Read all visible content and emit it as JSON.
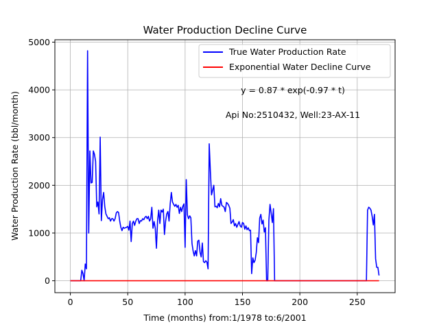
{
  "chart_data": {
    "type": "line",
    "title": "Water Production Decline Curve",
    "xlabel": "Time (months) from:1/1978 to:6/2001",
    "ylabel": "Water Production Rate (bbl/month)",
    "xlim": [
      -13.5,
      283
    ],
    "ylim": [
      -250,
      5050
    ],
    "xticks": [
      0,
      50,
      100,
      150,
      200,
      250
    ],
    "yticks": [
      0,
      1000,
      2000,
      3000,
      4000,
      5000
    ],
    "grid": true,
    "legend_position": "top-right",
    "annotations": [
      "y = 0.87 * exp(-0.97 * t)",
      "Api No:2510432, Well:23-AX-11"
    ],
    "series": [
      {
        "name": "True Water Production Rate",
        "color": "#0000ff",
        "x": [
          0,
          1,
          2,
          3,
          4,
          5,
          6,
          7,
          8,
          9,
          10,
          11,
          12,
          13,
          14,
          15,
          16,
          17,
          18,
          19,
          20,
          21,
          22,
          23,
          24,
          25,
          26,
          27,
          28,
          29,
          30,
          31,
          32,
          33,
          34,
          35,
          36,
          37,
          38,
          39,
          40,
          41,
          42,
          43,
          44,
          45,
          46,
          47,
          48,
          49,
          50,
          51,
          52,
          53,
          54,
          55,
          56,
          57,
          58,
          59,
          60,
          61,
          62,
          63,
          64,
          65,
          66,
          67,
          68,
          69,
          70,
          71,
          72,
          73,
          74,
          75,
          76,
          77,
          78,
          79,
          80,
          81,
          82,
          83,
          84,
          85,
          86,
          87,
          88,
          89,
          90,
          91,
          92,
          93,
          94,
          95,
          96,
          97,
          98,
          99,
          100,
          101,
          102,
          103,
          104,
          105,
          106,
          107,
          108,
          109,
          110,
          111,
          112,
          113,
          114,
          115,
          116,
          117,
          118,
          119,
          120,
          121,
          122,
          123,
          124,
          125,
          126,
          127,
          128,
          129,
          130,
          131,
          132,
          133,
          134,
          135,
          136,
          137,
          138,
          139,
          140,
          141,
          142,
          143,
          144,
          145,
          146,
          147,
          148,
          149,
          150,
          151,
          152,
          153,
          154,
          155,
          156,
          157,
          158,
          159,
          160,
          161,
          162,
          163,
          164,
          165,
          166,
          167,
          168,
          169,
          170,
          171,
          172,
          173,
          174,
          175,
          176,
          177,
          178,
          256,
          257,
          258,
          259,
          260,
          261,
          262,
          263,
          264,
          265,
          266,
          267,
          268,
          269
        ],
        "y": [
          0,
          0,
          0,
          0,
          0,
          0,
          0,
          0,
          0,
          0,
          220,
          150,
          0,
          350,
          250,
          4820,
          1000,
          2720,
          2050,
          2060,
          2720,
          2650,
          2500,
          1550,
          1650,
          1400,
          3010,
          1260,
          1700,
          1850,
          1550,
          1400,
          1350,
          1300,
          1320,
          1250,
          1300,
          1300,
          1250,
          1300,
          1420,
          1450,
          1430,
          1250,
          1120,
          1050,
          1120,
          1100,
          1110,
          1120,
          1140,
          1060,
          1250,
          820,
          1200,
          1250,
          1160,
          1250,
          1300,
          1300,
          1200,
          1260,
          1250,
          1300,
          1280,
          1330,
          1350,
          1300,
          1350,
          1250,
          1300,
          1540,
          1100,
          1240,
          1100,
          680,
          1250,
          1480,
          1200,
          1480,
          1440,
          1500,
          970,
          1250,
          1400,
          1450,
          1250,
          1610,
          1850,
          1650,
          1600,
          1560,
          1600,
          1540,
          1580,
          1410,
          1540,
          1450,
          1560,
          1610,
          700,
          2120,
          1380,
          1300,
          1360,
          1320,
          780,
          620,
          520,
          630,
          520,
          830,
          850,
          600,
          500,
          790,
          400,
          380,
          420,
          390,
          250,
          2870,
          2300,
          1800,
          1900,
          2000,
          1550,
          1560,
          1530,
          1620,
          1550,
          1720,
          1580,
          1560,
          1540,
          1450,
          1640,
          1620,
          1580,
          1520,
          1200,
          1230,
          1280,
          1150,
          1200,
          1120,
          1180,
          1240,
          1150,
          1120,
          1220,
          1200,
          1080,
          1150,
          1070,
          1110,
          1050,
          1060,
          150,
          480,
          380,
          430,
          590,
          900,
          800,
          1310,
          1390,
          1190,
          1270,
          1020,
          1110,
          0,
          0,
          1270,
          1600,
          1420,
          1220,
          1510,
          0,
          0,
          0,
          0,
          1480,
          1540,
          1520,
          1480,
          1350,
          1170,
          1390,
          460,
          280,
          280,
          110
        ],
        "y_note": "data ends at x=178 (rate 0 through month 255), resumes at x=256"
      },
      {
        "name": "Exponential Water Decline Curve",
        "color": "#ff0000",
        "x": [
          0,
          269
        ],
        "y": [
          0,
          0
        ]
      }
    ]
  }
}
